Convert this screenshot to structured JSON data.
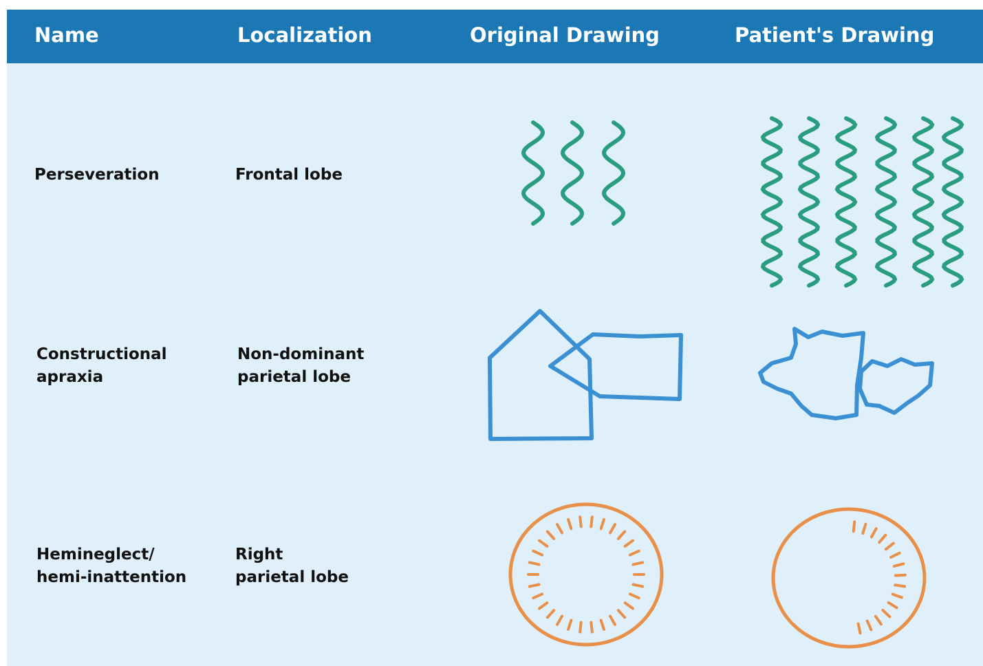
{
  "table": {
    "header": [
      "Name",
      "Localization",
      "Original Drawing",
      "Patient's Drawing"
    ],
    "rows": [
      [
        "Perseveration",
        "Frontal lobe"
      ],
      [
        "Constructional\napraxia",
        "Non-dominant\nparietal lobe"
      ],
      [
        "Hemineglect/\nhemi-inattention",
        "Right\nparietal lobe"
      ]
    ]
  }
}
